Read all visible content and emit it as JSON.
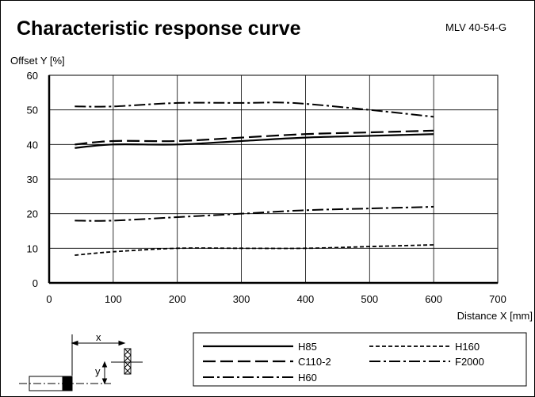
{
  "header": {
    "title": "Characteristic response curve",
    "model": "MLV 40-54-G"
  },
  "chart_data": {
    "type": "line",
    "title": "Characteristic response curve",
    "xlabel": "Distance X [mm]",
    "ylabel": "Offset Y [%]",
    "xlim": [
      0,
      700
    ],
    "ylim": [
      0,
      60
    ],
    "xticks": [
      0,
      100,
      200,
      300,
      400,
      500,
      600,
      700
    ],
    "yticks": [
      0,
      10,
      20,
      30,
      40,
      50,
      60
    ],
    "grid": true,
    "legend_position": "bottom",
    "series": [
      {
        "name": "H85",
        "style": "solid",
        "color": "#000000",
        "x": [
          40,
          100,
          200,
          300,
          400,
          500,
          600
        ],
        "y": [
          39,
          40,
          40,
          41,
          42,
          42.5,
          43
        ]
      },
      {
        "name": "C110-2",
        "style": "longdash",
        "color": "#000000",
        "x": [
          40,
          100,
          200,
          300,
          400,
          500,
          600
        ],
        "y": [
          40,
          41,
          41,
          42,
          43,
          43.5,
          44
        ]
      },
      {
        "name": "H60",
        "style": "dashdot",
        "color": "#000000",
        "x": [
          40,
          100,
          200,
          300,
          400,
          500,
          600
        ],
        "y": [
          18,
          18,
          19,
          20,
          21,
          21.5,
          22
        ]
      },
      {
        "name": "H160",
        "style": "shortdash",
        "color": "#000000",
        "x": [
          40,
          100,
          200,
          300,
          400,
          500,
          600
        ],
        "y": [
          8,
          9,
          10,
          10,
          10,
          10.5,
          11
        ]
      },
      {
        "name": "F2000",
        "style": "dashdot",
        "color": "#000000",
        "x": [
          40,
          100,
          200,
          300,
          380,
          500,
          600
        ],
        "y": [
          51,
          51,
          52,
          52,
          52,
          50,
          48
        ]
      }
    ]
  },
  "diagram": {
    "x_label": "x",
    "y_label": "y"
  }
}
